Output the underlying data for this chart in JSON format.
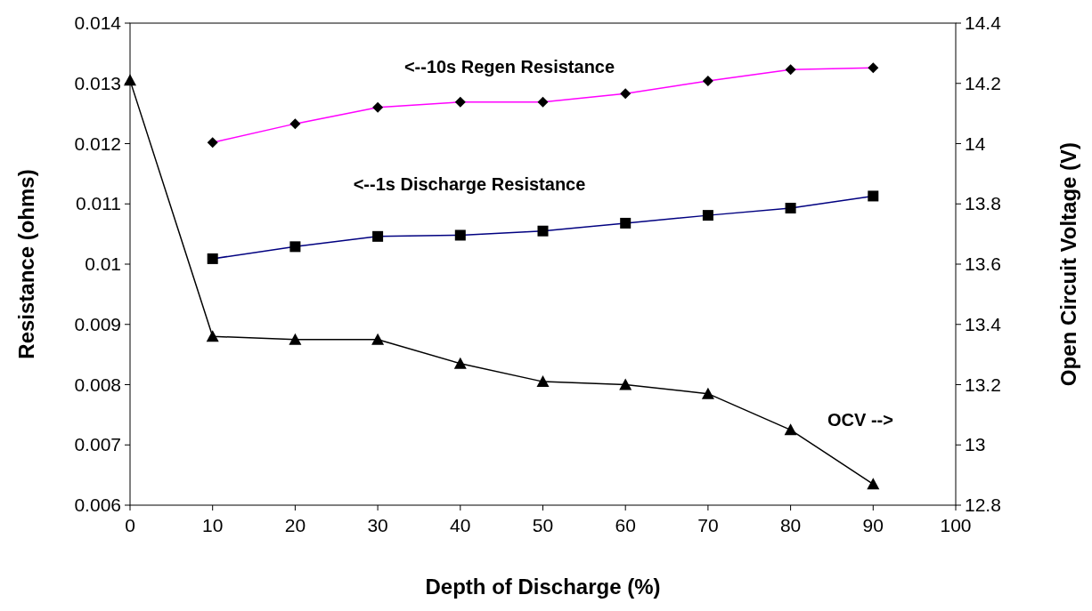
{
  "chart_data": {
    "type": "line",
    "xlabel": "Depth of Discharge (%)",
    "ylabel": "Resistance (ohms)",
    "y2label": "Open Circuit Voltage (V)",
    "xlim": [
      0,
      100
    ],
    "xticks": [
      0,
      10,
      20,
      30,
      40,
      50,
      60,
      70,
      80,
      90,
      100
    ],
    "ylim": [
      0.006,
      0.014
    ],
    "yticks": [
      0.006,
      0.007,
      0.008,
      0.009,
      0.01,
      0.011,
      0.012,
      0.013,
      0.014
    ],
    "y2lim": [
      12.8,
      14.4
    ],
    "y2ticks": [
      12.8,
      13,
      13.2,
      13.4,
      13.6,
      13.8,
      14,
      14.2,
      14.4
    ],
    "grid": false,
    "series": [
      {
        "color": "#ff00ff",
        "marker": "diamond",
        "x": [
          10,
          20,
          30,
          40,
          50,
          60,
          70,
          80,
          90
        ],
        "values": [
          0.01202,
          0.01233,
          0.0126,
          0.01269,
          0.01269,
          0.01283,
          0.01304,
          0.01323,
          0.01326
        ]
      },
      {
        "color": "#000080",
        "marker": "square",
        "x": [
          10,
          20,
          30,
          40,
          50,
          60,
          70,
          80,
          90
        ],
        "values": [
          0.01009,
          0.01029,
          0.01046,
          0.01048,
          0.01055,
          0.01068,
          0.01081,
          0.01093,
          0.01113
        ]
      },
      {
        "color": "#000000",
        "marker": "triangle",
        "axis": "y2",
        "x": [
          0,
          10,
          20,
          30,
          40,
          50,
          60,
          70,
          80,
          90
        ],
        "values": [
          14.21,
          13.36,
          13.35,
          13.35,
          13.27,
          13.21,
          13.2,
          13.17,
          13.05,
          12.87
        ]
      }
    ],
    "annotations": [
      "<--10s Regen Resistance",
      "<--1s Discharge Resistance",
      "OCV -->"
    ]
  }
}
